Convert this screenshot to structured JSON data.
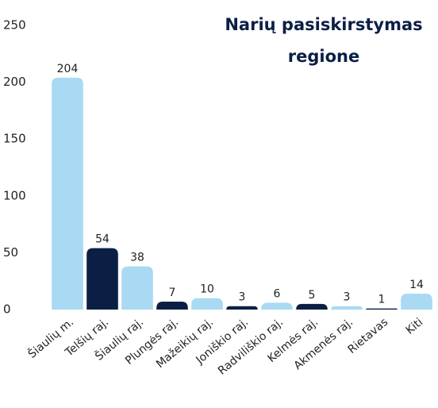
{
  "chart_data": {
    "type": "bar",
    "title": [
      "Narių pasiskirstymas",
      "regione"
    ],
    "categories": [
      "Šiaulių m.",
      "Telšių raj.",
      "Šiaulių raj.",
      "Plungės raj.",
      "Mažeikių raj.",
      "Joniškio raj.",
      "Radviliškio raj.",
      "Kelmės raj.",
      "Akmenės raj.",
      "Rietavas",
      "Kiti"
    ],
    "values": [
      204,
      54,
      38,
      7,
      10,
      3,
      6,
      5,
      3,
      1,
      14
    ],
    "colors": [
      "#a9d9f3",
      "#0b1f45",
      "#a9d9f3",
      "#0b1f45",
      "#a9d9f3",
      "#0b1f45",
      "#a9d9f3",
      "#0b1f45",
      "#a9d9f3",
      "#0b1f45",
      "#a9d9f3"
    ],
    "ylim": [
      0,
      250
    ],
    "yticks": [
      0,
      50,
      100,
      150,
      200,
      250
    ],
    "grid": false
  }
}
